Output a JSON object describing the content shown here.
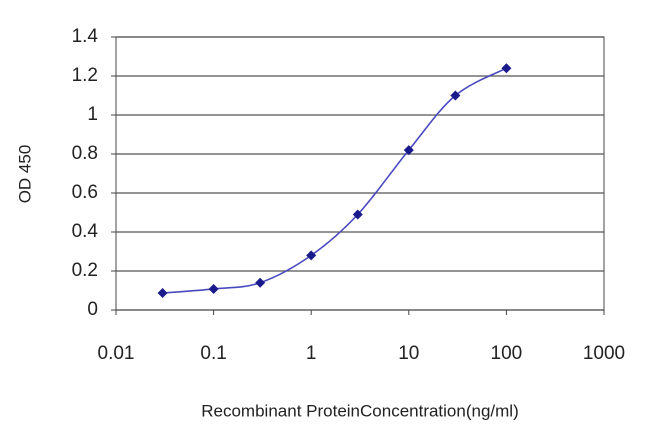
{
  "chart_data": {
    "type": "line",
    "y_label": "OD 450",
    "x_label": "Recombinant ProteinConcentration(ng/ml)",
    "x": [
      0.03,
      0.1,
      0.3,
      1,
      3,
      10,
      30,
      100
    ],
    "series": [
      {
        "color": "#1a1a8c",
        "values": [
          0.087,
          0.108,
          0.14,
          0.28,
          0.49,
          0.82,
          1.1,
          1.24
        ]
      }
    ],
    "xscale": "log",
    "xlim": [
      0.01,
      1000
    ],
    "xticks": [
      0.01,
      0.1,
      1,
      10,
      100,
      1000
    ],
    "ylim": [
      0,
      1.4
    ],
    "yticks": [
      0,
      0.2,
      0.4,
      0.6,
      0.8,
      1,
      1.2,
      1.4
    ],
    "grid": true
  }
}
